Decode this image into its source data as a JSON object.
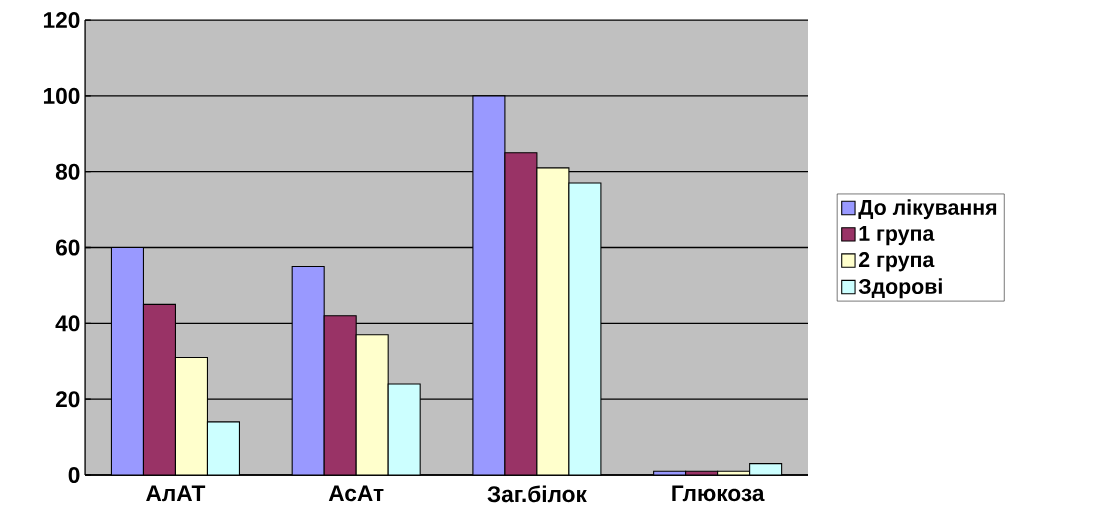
{
  "chart_data": {
    "type": "bar",
    "categories": [
      "АлАТ",
      "АсАт",
      "Заг.білок",
      "Глюкоза"
    ],
    "series": [
      {
        "name": "До лікування",
        "color": "#9999ff",
        "values": [
          60,
          55,
          100,
          1
        ]
      },
      {
        "name": "1 група",
        "color": "#993366",
        "values": [
          45,
          42,
          85,
          1
        ]
      },
      {
        "name": "2 група",
        "color": "#ffffcc",
        "values": [
          31,
          37,
          81,
          1
        ]
      },
      {
        "name": "Здорові",
        "color": "#ccffff",
        "values": [
          14,
          24,
          77,
          3
        ]
      }
    ],
    "ylim": [
      0,
      120
    ],
    "yticks": [
      0,
      20,
      40,
      60,
      80,
      100,
      120
    ],
    "grid": "y",
    "legend": "right"
  }
}
